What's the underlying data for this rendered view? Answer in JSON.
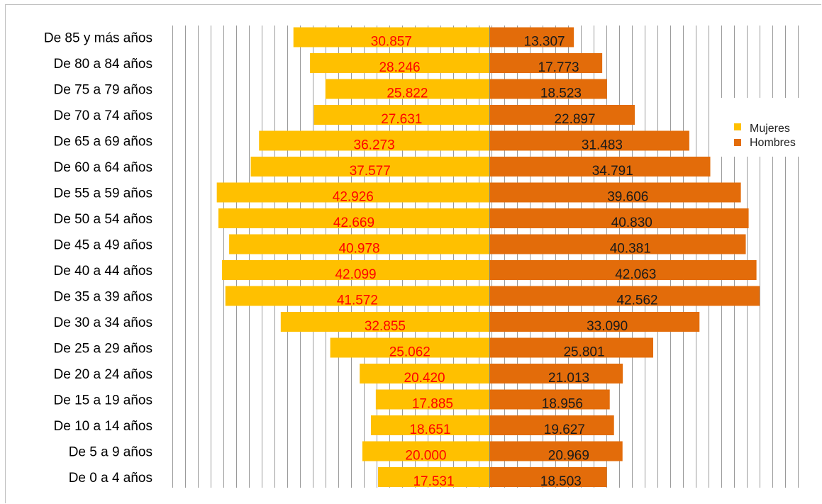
{
  "chart_data": {
    "type": "bar",
    "orientation": "horizontal",
    "layout": "population-pyramid",
    "categories": [
      "De 85 y más años",
      "De 80 a 84 años",
      "De 75 a 79 años",
      "De 70 a 74 años",
      "De 65 a 69 años",
      "De 60 a 64 años",
      "De 55 a 59 años",
      "De 50 a 54 años",
      "De 45 a 49 años",
      "De 40 a 44 años",
      "De 35 a 39 años",
      "De 30 a 34 años",
      "De 25 a 29 años",
      "De 20 a 24 años",
      "De 15 a 19 años",
      "De 10 a 14 años",
      "De 5 a 9 años",
      "De 0 a 4 años"
    ],
    "series": [
      {
        "name": "Mujeres",
        "color": "#ffc000",
        "label_color": "#ff0000",
        "side": "left",
        "values": [
          30857,
          28246,
          25822,
          27631,
          36273,
          37577,
          42926,
          42669,
          40978,
          42099,
          41572,
          32855,
          25062,
          20420,
          17885,
          18651,
          20000,
          17531
        ],
        "labels": [
          "30.857",
          "28.246",
          "25.822",
          "27.631",
          "36.273",
          "37.577",
          "42.926",
          "42.669",
          "40.978",
          "42.099",
          "41.572",
          "32.855",
          "25.062",
          "20.420",
          "17.885",
          "18.651",
          "20.000",
          "17.531"
        ]
      },
      {
        "name": "Hombres",
        "color": "#e36c0a",
        "label_color": "#1a1a1a",
        "side": "right",
        "values": [
          13307,
          17773,
          18523,
          22897,
          31483,
          34791,
          39606,
          40830,
          40381,
          42063,
          42562,
          33090,
          25801,
          21013,
          18956,
          19627,
          20969,
          18503
        ],
        "labels": [
          "13.307",
          "17.773",
          "18.523",
          "22.897",
          "31.483",
          "34.791",
          "39.606",
          "40.830",
          "40.381",
          "42.063",
          "42.562",
          "33.090",
          "25.801",
          "21.013",
          "18.956",
          "19.627",
          "20.969",
          "18.503"
        ]
      }
    ],
    "xlim": [
      -43000,
      43000
    ],
    "grid": true,
    "legend": "right"
  }
}
